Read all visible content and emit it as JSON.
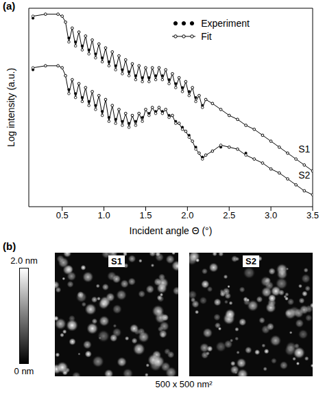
{
  "chart_data": {
    "type": "line",
    "panel_label": "(a)",
    "x_label": "Incident angle Θ (°)",
    "y_label": "Log intensity (a.u.)",
    "x": [
      0.15,
      0.3,
      0.45,
      0.5,
      0.54,
      0.58,
      0.62,
      0.66,
      0.7,
      0.74,
      0.78,
      0.82,
      0.86,
      0.9,
      0.94,
      0.98,
      1.02,
      1.06,
      1.1,
      1.14,
      1.18,
      1.22,
      1.26,
      1.3,
      1.34,
      1.38,
      1.42,
      1.46,
      1.5,
      1.54,
      1.58,
      1.62,
      1.66,
      1.7,
      1.74,
      1.78,
      1.82,
      1.86,
      1.9,
      1.94,
      1.98,
      2.02,
      2.06,
      2.1,
      2.14,
      2.18,
      2.22,
      2.3,
      2.4,
      2.5,
      2.6,
      2.7,
      2.8,
      2.9,
      3.0,
      3.1,
      3.2,
      3.3,
      3.4,
      3.5
    ],
    "xlim": [
      0.1,
      3.5
    ],
    "xticks": [
      0.5,
      {
        "value": 1,
        "label": "1.0"
      },
      1.5,
      {
        "value": 2,
        "label": "2.0"
      },
      2.5,
      {
        "value": 3,
        "label": "3.0"
      },
      3.5
    ],
    "ylim": [
      0,
      10
    ],
    "tick_labels": "x",
    "legend": "top right",
    "series": [
      {
        "name": "Experiment",
        "label": "S1",
        "color": "#000000",
        "marker": "circle",
        "line_style": "none",
        "values": [
          9.5,
          9.7,
          9.7,
          9.6,
          9.3,
          8.5,
          9.0,
          8.3,
          8.8,
          8.1,
          8.6,
          7.9,
          8.4,
          7.7,
          8.2,
          7.5,
          8.0,
          7.3,
          7.8,
          7.1,
          7.6,
          6.9,
          7.4,
          6.8,
          7.2,
          6.6,
          7.1,
          6.5,
          7.0,
          6.5,
          7.0,
          6.6,
          7.0,
          6.6,
          6.9,
          6.4,
          6.7,
          6.2,
          6.5,
          6.0,
          6.3,
          5.8,
          6.0,
          5.5,
          5.6,
          5.1,
          5.4,
          5.2,
          4.9,
          4.6,
          4.4,
          4.1,
          3.9,
          3.6,
          3.3,
          3.0,
          2.7,
          2.4,
          2.1,
          1.8
        ]
      },
      {
        "name": "Fit",
        "label": "S1",
        "color": "#000000",
        "marker": "open circle",
        "line_style": "solid",
        "values": [
          9.6,
          9.7,
          9.7,
          9.6,
          9.3,
          8.3,
          9.0,
          8.1,
          8.8,
          7.9,
          8.6,
          7.7,
          8.4,
          7.5,
          8.2,
          7.3,
          8.0,
          7.1,
          7.8,
          6.9,
          7.6,
          6.7,
          7.4,
          6.6,
          7.2,
          6.4,
          7.1,
          6.3,
          7.0,
          6.3,
          7.0,
          6.4,
          7.0,
          6.4,
          6.9,
          6.2,
          6.7,
          6.0,
          6.5,
          5.8,
          6.3,
          5.6,
          6.0,
          5.3,
          5.6,
          5.0,
          5.4,
          5.2,
          4.9,
          4.6,
          4.4,
          4.1,
          3.9,
          3.6,
          3.3,
          3.0,
          2.7,
          2.4,
          2.1,
          1.8
        ]
      },
      {
        "name": "Experiment",
        "label": "S2",
        "color": "#000000",
        "marker": "circle",
        "line_style": "none",
        "values": [
          6.9,
          7.1,
          7.1,
          7.0,
          6.6,
          5.9,
          6.4,
          5.7,
          6.2,
          5.5,
          6.0,
          5.3,
          5.8,
          5.1,
          5.6,
          4.8,
          5.4,
          4.5,
          5.1,
          4.4,
          4.9,
          4.3,
          4.7,
          4.2,
          4.6,
          4.3,
          4.7,
          4.5,
          4.9,
          4.7,
          5.0,
          4.8,
          5.0,
          4.8,
          4.9,
          4.6,
          4.6,
          4.3,
          4.2,
          4.0,
          3.8,
          3.6,
          3.3,
          3.0,
          2.7,
          2.5,
          2.6,
          2.8,
          3.0,
          3.0,
          2.9,
          2.7,
          2.4,
          2.2,
          1.9,
          1.7,
          1.4,
          1.1,
          0.8,
          0.6
        ]
      },
      {
        "name": "Fit",
        "label": "S2",
        "color": "#000000",
        "marker": "open circle",
        "line_style": "solid",
        "values": [
          7.0,
          7.1,
          7.1,
          7.0,
          6.6,
          5.7,
          6.4,
          5.5,
          6.2,
          5.3,
          6.0,
          5.1,
          5.8,
          4.9,
          5.6,
          4.6,
          5.4,
          4.3,
          5.1,
          4.2,
          4.9,
          4.1,
          4.7,
          4.0,
          4.6,
          4.1,
          4.7,
          4.3,
          4.9,
          4.6,
          5.0,
          4.7,
          5.0,
          4.7,
          4.9,
          4.5,
          4.6,
          4.2,
          4.2,
          3.9,
          3.8,
          3.5,
          3.3,
          2.9,
          2.7,
          2.4,
          2.6,
          2.8,
          3.1,
          3.0,
          2.9,
          2.6,
          2.4,
          2.2,
          1.9,
          1.7,
          1.4,
          1.1,
          0.8,
          0.6
        ]
      }
    ]
  },
  "afm_panel": {
    "panel_label": "(b)",
    "colorbar": {
      "range": [
        0,
        2.0
      ],
      "ticks": [
        {
          "value": 2.0,
          "label": "2.0 nm"
        },
        {
          "value": 0,
          "label": "0 nm"
        }
      ]
    },
    "images": [
      {
        "label": "S1"
      },
      {
        "label": "S2"
      }
    ],
    "caption": "500 x 500 nm²"
  }
}
